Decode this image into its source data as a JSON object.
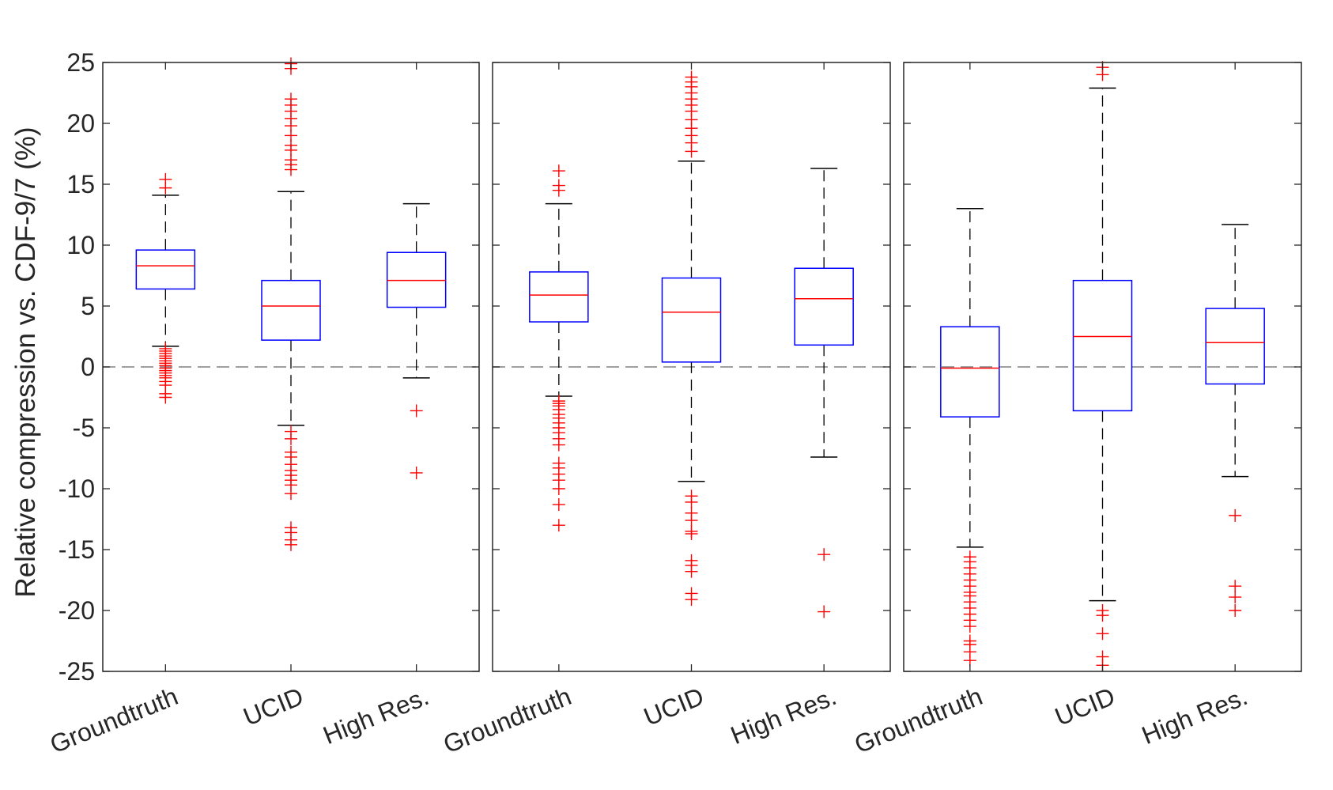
{
  "chart_data": {
    "type": "box",
    "ylabel": "Relative compression vs. CDF-9/7 (%)",
    "xlabel": "",
    "title": "",
    "ylim": [
      -25,
      25
    ],
    "yticks": [
      "25",
      "20",
      "15",
      "10",
      "5",
      "0",
      "-5",
      "-10",
      "-15",
      "-20",
      "-25"
    ],
    "ytick_values": [
      25,
      20,
      15,
      10,
      5,
      0,
      -5,
      -10,
      -15,
      -20,
      -25
    ],
    "reference_line": 0,
    "categories": [
      "Groundtruth",
      "UCID",
      "High Res."
    ],
    "colors": {
      "box": "#0000ff",
      "median": "#ff0000",
      "whisker": "#000000",
      "outlier": "#ff0000",
      "reference": "#808080",
      "axes": "#262626"
    },
    "panels": [
      {
        "boxes": [
          {
            "category": "Groundtruth",
            "q1": 6.4,
            "median": 8.3,
            "q3": 9.6,
            "whisker_low": 1.7,
            "whisker_high": 14.1,
            "outliers": [
              15.4,
              14.7,
              1.5,
              1.3,
              1.1,
              0.9,
              0.7,
              0.5,
              0.3,
              0.1,
              -0.1,
              -0.3,
              -0.5,
              -0.7,
              -0.9,
              -1.2,
              -1.5,
              -2.2,
              -2.5
            ]
          },
          {
            "category": "UCID",
            "q1": 2.2,
            "median": 5.0,
            "q3": 7.1,
            "whisker_low": -4.8,
            "whisker_high": 14.4,
            "outliers": [
              24.9,
              24.5,
              22.0,
              21.5,
              21.0,
              20.4,
              19.8,
              19.0,
              18.2,
              17.8,
              17.0,
              16.6,
              16.2,
              -5.3,
              -5.9,
              -7.0,
              -7.4,
              -8.0,
              -8.5,
              -8.9,
              -9.3,
              -9.7,
              -10.4,
              -13.2,
              -13.6,
              -14.2,
              -14.6
            ]
          },
          {
            "category": "High Res.",
            "q1": 4.9,
            "median": 7.1,
            "q3": 9.4,
            "whisker_low": -0.9,
            "whisker_high": 13.4,
            "outliers": [
              -3.6,
              -8.7
            ]
          }
        ]
      },
      {
        "boxes": [
          {
            "category": "Groundtruth",
            "q1": 3.7,
            "median": 5.9,
            "q3": 7.8,
            "whisker_low": -2.4,
            "whisker_high": 13.4,
            "outliers": [
              16.1,
              14.9,
              14.5,
              -2.8,
              -3.0,
              -3.2,
              -3.5,
              -3.9,
              -4.2,
              -4.6,
              -5.0,
              -5.4,
              -5.9,
              -6.4,
              -7.9,
              -8.3,
              -8.8,
              -9.3,
              -10.0,
              -11.3,
              -13.0
            ]
          },
          {
            "category": "UCID",
            "q1": 0.4,
            "median": 4.5,
            "q3": 7.3,
            "whisker_low": -9.4,
            "whisker_high": 16.9,
            "outliers": [
              23.8,
              23.4,
              23.0,
              22.5,
              22.0,
              21.5,
              21.0,
              20.3,
              19.6,
              19.0,
              18.4,
              17.7,
              -10.6,
              -11.1,
              -12.0,
              -12.6,
              -13.5,
              -13.7,
              -15.9,
              -16.3,
              -16.8,
              -18.6,
              -19.1
            ]
          },
          {
            "category": "High Res.",
            "q1": 1.8,
            "median": 5.6,
            "q3": 8.1,
            "whisker_low": -7.4,
            "whisker_high": 16.3,
            "outliers": [
              -15.4,
              -20.1
            ]
          }
        ]
      },
      {
        "boxes": [
          {
            "category": "Groundtruth",
            "q1": -4.1,
            "median": -0.1,
            "q3": 3.3,
            "whisker_low": -14.8,
            "whisker_high": 13.0,
            "outliers": [
              -15.6,
              -16.0,
              -16.5,
              -17.0,
              -17.5,
              -18.0,
              -18.5,
              -18.8,
              -19.3,
              -19.8,
              -20.3,
              -20.8,
              -21.3,
              -22.5,
              -22.8,
              -23.4,
              -24.1
            ]
          },
          {
            "category": "UCID",
            "q1": -3.6,
            "median": 2.5,
            "q3": 7.1,
            "whisker_low": -19.2,
            "whisker_high": 22.9,
            "outliers": [
              24.6,
              24.0,
              -20.0,
              -20.4,
              -21.9,
              -23.8,
              -24.5
            ]
          },
          {
            "category": "High Res.",
            "q1": -1.4,
            "median": 2.0,
            "q3": 4.8,
            "whisker_low": -9.0,
            "whisker_high": 11.7,
            "outliers": [
              -12.2,
              -18.0,
              -18.9,
              -20.0
            ]
          }
        ]
      }
    ]
  }
}
